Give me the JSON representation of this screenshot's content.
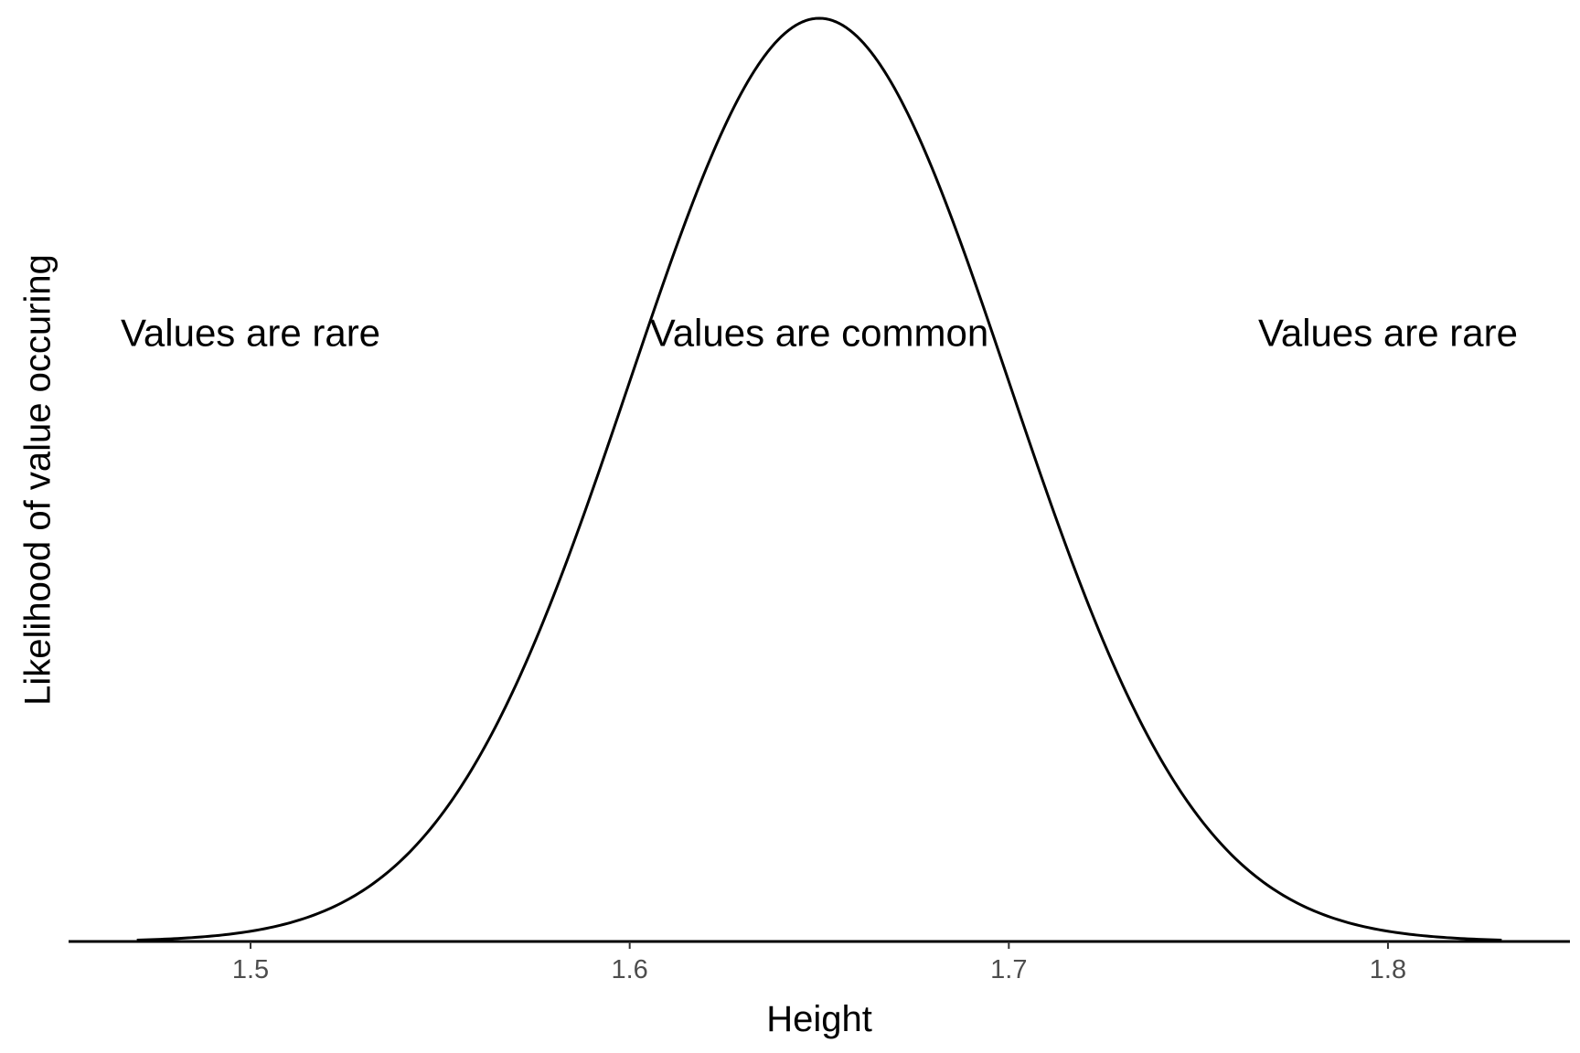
{
  "chart_data": {
    "type": "line",
    "title": "",
    "xlabel": "Height",
    "ylabel": "Likelihood of value occuring",
    "xlim": [
      1.452,
      1.848
    ],
    "ylim": [
      0,
      1
    ],
    "x_ticks": [
      1.5,
      1.6,
      1.7,
      1.8
    ],
    "x_tick_labels": [
      "1.5",
      "1.6",
      "1.7",
      "1.8"
    ],
    "y_ticks": [],
    "grid": false,
    "legend": "none",
    "series": [
      {
        "distribution": "normal",
        "mean": 1.65,
        "sd": 0.05,
        "x_range": [
          1.47,
          1.83
        ]
      }
    ],
    "annotations": [
      {
        "text": "Values are rare",
        "x": 1.5,
        "y": 0.66
      },
      {
        "text": "Values are common",
        "x": 1.65,
        "y": 0.66
      },
      {
        "text": "Values are rare",
        "x": 1.8,
        "y": 0.66
      }
    ],
    "colors": {
      "line": "#000000",
      "tick_text": "#4d4d4d",
      "text": "#000000",
      "background": "#ffffff"
    }
  }
}
